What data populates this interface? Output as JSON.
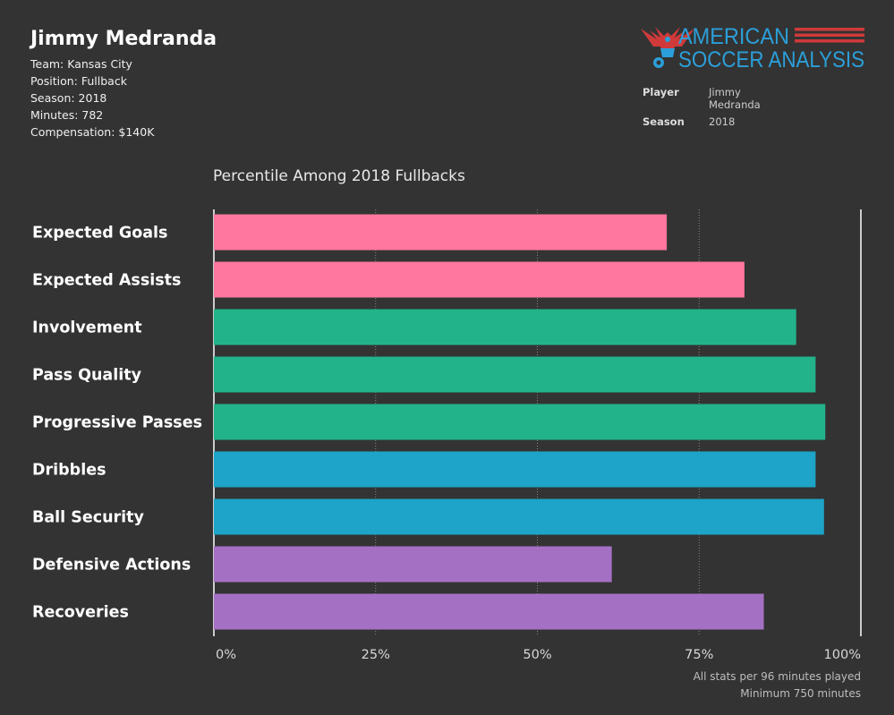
{
  "player": {
    "name": "Jimmy Medranda",
    "team": "Team: Kansas City",
    "position": "Position: Fullback",
    "season": "Season: 2018",
    "minutes": "Minutes: 782",
    "compensation": "Compensation: $140K"
  },
  "logo": {
    "line1": "AMERICAN",
    "line2": "SOCCER ANALYSIS",
    "blue": "#2b9fd9",
    "red": "#d03a3a"
  },
  "filters": [
    {
      "label": "Player",
      "value": "Jimmy Medranda"
    },
    {
      "label": "Season",
      "value": "2018"
    }
  ],
  "footnote": {
    "line1": "All stats per 96 minutes played",
    "line2": "Minimum 750 minutes"
  },
  "chart_data": {
    "type": "bar",
    "orientation": "horizontal",
    "title": "Percentile Among 2018 Fullbacks",
    "categories": [
      "Expected Goals",
      "Expected Assists",
      "Involvement",
      "Pass Quality",
      "Progressive Passes",
      "Dribbles",
      "Ball Security",
      "Defensive Actions",
      "Recoveries"
    ],
    "values": [
      70,
      82,
      90,
      93,
      94.5,
      93,
      94.3,
      61.5,
      85
    ],
    "colors": [
      "#ff779e",
      "#ff779e",
      "#22b38a",
      "#22b38a",
      "#22b38a",
      "#1da4c8",
      "#1da4c8",
      "#a470c4",
      "#a470c4"
    ],
    "xlim": [
      0,
      100
    ],
    "xticks": [
      0,
      25,
      50,
      75,
      100
    ],
    "xtick_labels": [
      "0%",
      "25%",
      "50%",
      "75%",
      "100%"
    ],
    "grid": "dotted vertical at 25, 50, 75"
  }
}
